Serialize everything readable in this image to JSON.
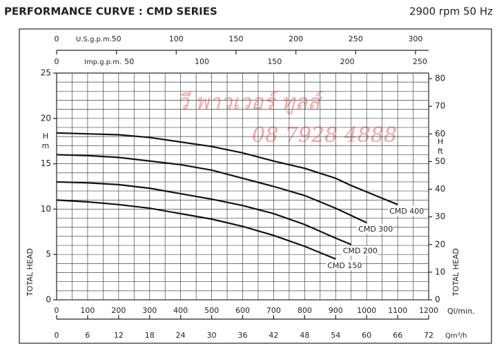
{
  "chart_data": {
    "type": "line",
    "title": "PERFORMANCE CURVE : CMD SERIES",
    "subtitle": "2900 rpm 50 Hz",
    "xlabel": "Ql/min.",
    "ylabel": "TOTAL HEAD",
    "y_unit_symbol": "H",
    "y_unit": "m",
    "y2label": "TOTAL HEAD",
    "y2_unit_symbol": "H",
    "y2_unit": "ft",
    "x": [
      0,
      100,
      200,
      300,
      400,
      500,
      600,
      700,
      800,
      900,
      950,
      1000,
      1100
    ],
    "xlim": [
      0,
      1200
    ],
    "xticks": [
      0,
      100,
      200,
      300,
      400,
      500,
      600,
      700,
      800,
      900,
      1000,
      1100,
      1200
    ],
    "ylim": [
      0,
      25
    ],
    "yticks": [
      0,
      5,
      10,
      15,
      20,
      25
    ],
    "y2lim": [
      0,
      82
    ],
    "y2ticks": [
      0,
      10,
      20,
      30,
      40,
      50,
      60,
      70,
      80
    ],
    "grid": true,
    "xgrid": [
      50,
      150,
      250,
      350,
      450,
      550,
      650,
      750,
      850,
      950,
      1050,
      1150
    ],
    "ygrid": [
      1,
      2,
      3,
      4,
      6,
      7,
      8,
      9,
      11,
      12,
      13,
      14,
      16,
      17,
      18,
      19,
      21,
      22,
      23,
      24
    ],
    "extra_axes": [
      {
        "label": "U.S.g.p.m.",
        "lim": [
          0,
          311
        ],
        "ticks": [
          0,
          50,
          100,
          150,
          200,
          250,
          300
        ]
      },
      {
        "label": "Imp.g.p.m.",
        "lim": [
          0,
          256
        ],
        "ticks": [
          0,
          50,
          100,
          150,
          200,
          250
        ]
      },
      {
        "label": "Qm³/h",
        "lim": [
          0,
          72
        ],
        "ticks": [
          0,
          6,
          12,
          18,
          24,
          30,
          36,
          42,
          48,
          54,
          60,
          66,
          72
        ]
      }
    ],
    "series": [
      {
        "name": "CMD 400",
        "color": "#111111",
        "values": [
          18.4,
          18.3,
          18.2,
          17.9,
          17.4,
          16.9,
          16.2,
          15.3,
          14.5,
          13.4,
          12.6,
          11.9,
          10.5
        ]
      },
      {
        "name": "CMD 300",
        "color": "#111111",
        "values": [
          16.0,
          15.9,
          15.7,
          15.3,
          14.9,
          14.3,
          13.4,
          12.5,
          11.5,
          10.1,
          9.3,
          8.5,
          null
        ]
      },
      {
        "name": "CMD 200",
        "color": "#111111",
        "values": [
          13.0,
          12.9,
          12.7,
          12.3,
          11.7,
          11.1,
          10.4,
          9.5,
          8.3,
          6.8,
          6.1,
          null,
          null
        ]
      },
      {
        "name": "CMD 150",
        "color": "#111111",
        "values": [
          11.0,
          10.8,
          10.5,
          10.1,
          9.5,
          8.9,
          8.1,
          7.1,
          5.9,
          4.5,
          null,
          null,
          null
        ]
      }
    ],
    "annotations": [
      "วี พาวเวอร์ ทูลส์",
      "08 7928 4888"
    ],
    "annotation_color": "#f08a8a"
  }
}
